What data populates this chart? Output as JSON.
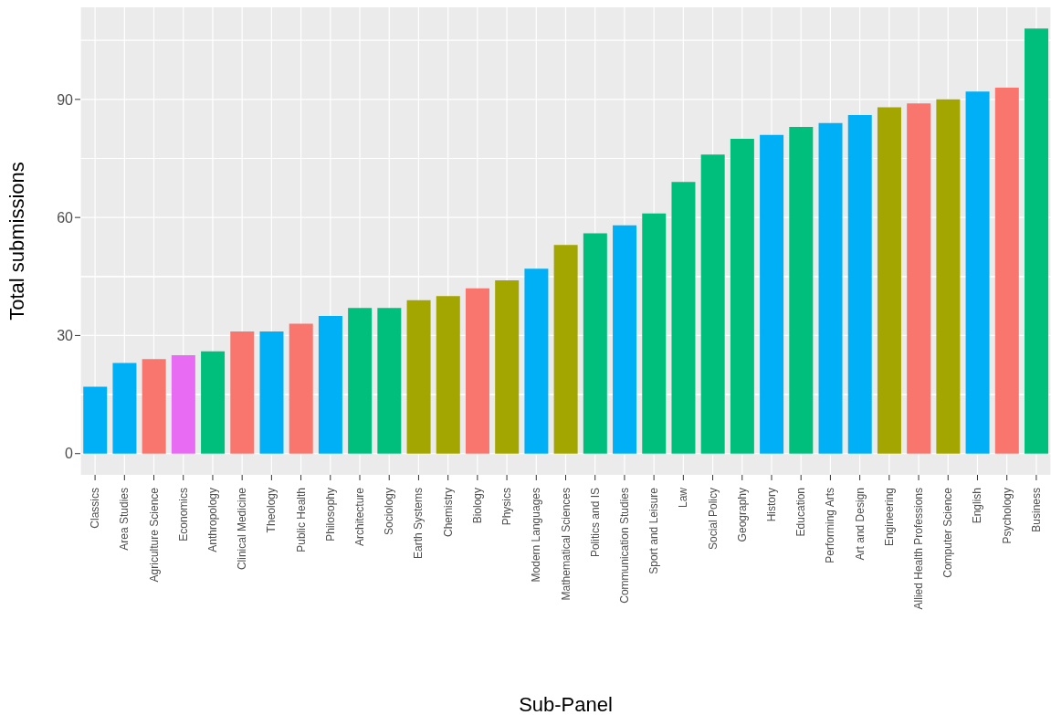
{
  "chart_data": {
    "type": "bar",
    "xlabel": "Sub-Panel",
    "ylabel": "Total submissions",
    "categories": [
      "Classics",
      "Area Studies",
      "Agriculture Science",
      "Economics",
      "Anthropology",
      "Clinical Medicine",
      "Theology",
      "Public Health",
      "Philosophy",
      "Architecture",
      "Sociology",
      "Earth Systems",
      "Chemistry",
      "Biology",
      "Physics",
      "Modern Languages",
      "Mathematical Sciences",
      "Politics and IS",
      "Communication Studies",
      "Sport and Leisure",
      "Law",
      "Social Policy",
      "Geography",
      "History",
      "Education",
      "Performing Arts",
      "Art and Design",
      "Engineering",
      "Allied Health Professions",
      "Computer Science",
      "English",
      "Psychology",
      "Business"
    ],
    "values": [
      17,
      23,
      24,
      25,
      26,
      31,
      31,
      33,
      35,
      37,
      37,
      39,
      40,
      42,
      44,
      47,
      53,
      56,
      58,
      61,
      69,
      76,
      80,
      81,
      83,
      84,
      86,
      88,
      89,
      90,
      92,
      93,
      108
    ],
    "colors": [
      "#00b0f6",
      "#00b0f6",
      "#f8766d",
      "#e76bf3",
      "#00bf7d",
      "#f8766d",
      "#00b0f6",
      "#f8766d",
      "#00b0f6",
      "#00bf7d",
      "#00bf7d",
      "#a3a500",
      "#a3a500",
      "#f8766d",
      "#a3a500",
      "#00b0f6",
      "#a3a500",
      "#00bf7d",
      "#00b0f6",
      "#00bf7d",
      "#00bf7d",
      "#00bf7d",
      "#00bf7d",
      "#00b0f6",
      "#00bf7d",
      "#00b0f6",
      "#00b0f6",
      "#a3a500",
      "#f8766d",
      "#a3a500",
      "#00b0f6",
      "#f8766d",
      "#00bf7d"
    ],
    "ylim": [
      -5.4,
      113.4
    ],
    "yticks": [
      0,
      30,
      60,
      90
    ],
    "grid": true
  }
}
